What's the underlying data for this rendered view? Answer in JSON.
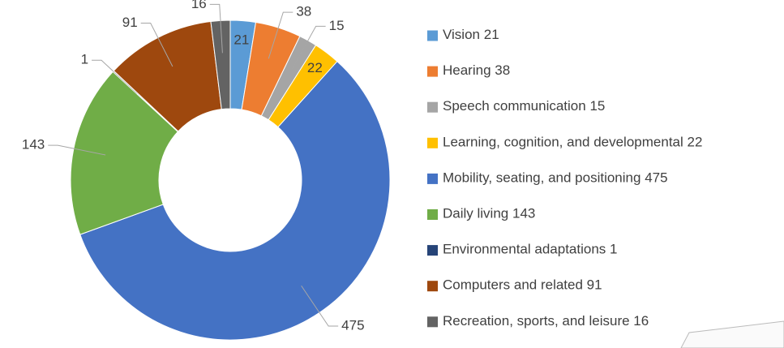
{
  "chart_data": {
    "type": "donut",
    "categories": [
      "Vision",
      "Hearing",
      "Speech communication",
      "Learning, cognition, and developmental",
      "Mobility, seating, and positioning",
      "Daily living",
      "Environmental adaptations",
      "Computers and related",
      "Recreation, sports, and leisure"
    ],
    "values": [
      21,
      38,
      15,
      22,
      475,
      143,
      1,
      91,
      16
    ],
    "colors": [
      "#5b9bd5",
      "#ed7d31",
      "#a5a5a5",
      "#ffc000",
      "#4472c4",
      "#70ad47",
      "#264478",
      "#9e480e",
      "#636363"
    ],
    "legend": "right"
  }
}
